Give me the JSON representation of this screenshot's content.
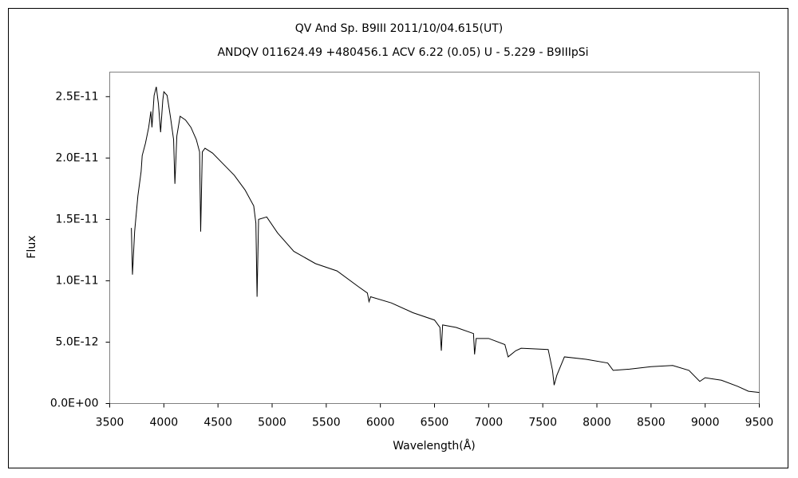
{
  "chart_data": {
    "type": "line",
    "title": "QV And    Sp. B9III    2011/10/04.615(UT)",
    "subtitle": "ANDQV 011624.49 +480456.1 ACV 6.22 (0.05) U - 5.229 - B9IIIpSi",
    "x_label": "Wavelength(Å)",
    "y_label": "Flux",
    "xlim": [
      3500,
      9500
    ],
    "xticks": [
      3500,
      4000,
      4500,
      5000,
      5500,
      6000,
      6500,
      7000,
      7500,
      8000,
      8500,
      9000,
      9500
    ],
    "ylim": [
      0,
      2.7e-11
    ],
    "yticks": [
      {
        "value": 0,
        "label": "0.0E+00"
      },
      {
        "value": 5e-12,
        "label": "5.0E-12"
      },
      {
        "value": 1e-11,
        "label": "1.0E-11"
      },
      {
        "value": 1.5e-11,
        "label": "1.5E-11"
      },
      {
        "value": 2e-11,
        "label": "2.0E-11"
      },
      {
        "value": 2.5e-11,
        "label": "2.5E-11"
      }
    ],
    "grid": false,
    "series": [
      {
        "color": "#000000",
        "x": [
          3700,
          3710,
          3730,
          3760,
          3790,
          3800,
          3830,
          3860,
          3880,
          3890,
          3910,
          3930,
          3950,
          3970,
          3990,
          4000,
          4030,
          4060,
          4090,
          4102,
          4120,
          4150,
          4200,
          4250,
          4300,
          4330,
          4340,
          4355,
          4380,
          4450,
          4550,
          4650,
          4750,
          4830,
          4850,
          4861,
          4875,
          4950,
          5050,
          5200,
          5400,
          5600,
          5800,
          5880,
          5895,
          5910,
          6100,
          6300,
          6500,
          6550,
          6563,
          6575,
          6700,
          6860,
          6870,
          6885,
          7000,
          7150,
          7180,
          7250,
          7300,
          7550,
          7590,
          7605,
          7630,
          7700,
          7900,
          8100,
          8150,
          8300,
          8500,
          8700,
          8850,
          8950,
          9000,
          9150,
          9300,
          9400,
          9500
        ],
        "values": [
          1.43e-11,
          1.05e-11,
          1.4e-11,
          1.69e-11,
          1.89e-11,
          2.02e-11,
          2.12e-11,
          2.25e-11,
          2.38e-11,
          2.25e-11,
          2.51e-11,
          2.58e-11,
          2.44e-11,
          2.21e-11,
          2.47e-11,
          2.54e-11,
          2.51e-11,
          2.34e-11,
          2.15e-11,
          1.79e-11,
          2.18e-11,
          2.34e-11,
          2.31e-11,
          2.25e-11,
          2.15e-11,
          2.05e-11,
          1.4e-11,
          2.05e-11,
          2.08e-11,
          2.04e-11,
          1.95e-11,
          1.86e-11,
          1.74e-11,
          1.61e-11,
          1.47e-11,
          8.7e-12,
          1.5e-11,
          1.52e-11,
          1.39e-11,
          1.24e-11,
          1.14e-11,
          1.08e-11,
          9.5e-12,
          9e-12,
          8.3e-12,
          8.7e-12,
          8.2e-12,
          7.4e-12,
          6.8e-12,
          6.2e-12,
          4.3e-12,
          6.4e-12,
          6.2e-12,
          5.7e-12,
          4e-12,
          5.3e-12,
          5.3e-12,
          4.8e-12,
          3.8e-12,
          4.3e-12,
          4.5e-12,
          4.4e-12,
          2.7e-12,
          1.5e-12,
          2.3e-12,
          3.8e-12,
          3.6e-12,
          3.3e-12,
          2.7e-12,
          2.8e-12,
          3e-12,
          3.1e-12,
          2.7e-12,
          1.8e-12,
          2.1e-12,
          1.9e-12,
          1.4e-12,
          1e-12,
          9e-13
        ]
      }
    ]
  }
}
